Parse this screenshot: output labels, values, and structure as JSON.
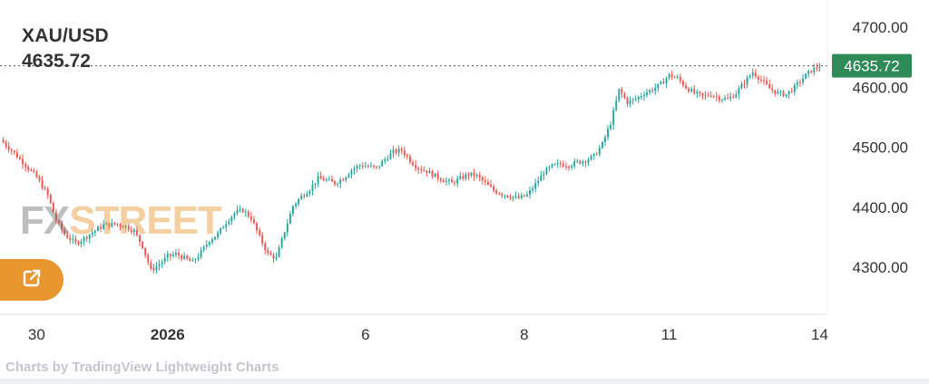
{
  "header": {
    "symbol": "XAU/USD",
    "last_value": "4635.72"
  },
  "watermark": {
    "fx": "FX",
    "street": "STREET"
  },
  "open_button_icon": "external-link-icon",
  "footer": {
    "attribution": "Charts by TradingView Lightweight Charts"
  },
  "colors": {
    "up": "#26a69a",
    "down": "#ef5350",
    "last_price_label": "#2e8b57",
    "accent": "#e8962e"
  },
  "chart_data": {
    "type": "candlestick",
    "y_ticks": [
      "4700.00",
      "4600.00",
      "4500.00",
      "4400.00",
      "4300.00"
    ],
    "x_ticks": [
      {
        "label": "30",
        "bold": false
      },
      {
        "label": "2026",
        "bold": true
      },
      {
        "label": "6",
        "bold": false
      },
      {
        "label": "8",
        "bold": false
      },
      {
        "label": "11",
        "bold": false
      },
      {
        "label": "14",
        "bold": false
      }
    ],
    "ylim": [
      4245,
      4730
    ],
    "last_price": 4635.72,
    "last_price_label": "4635.72",
    "grid": false,
    "path": [
      [
        0,
        4508
      ],
      [
        4,
        4490
      ],
      [
        8,
        4470
      ],
      [
        12,
        4450
      ],
      [
        16,
        4420
      ],
      [
        19,
        4378
      ],
      [
        22,
        4355
      ],
      [
        26,
        4340
      ],
      [
        29,
        4348
      ],
      [
        32,
        4358
      ],
      [
        36,
        4370
      ],
      [
        40,
        4372
      ],
      [
        44,
        4368
      ],
      [
        47,
        4360
      ],
      [
        50,
        4335
      ],
      [
        53,
        4295
      ],
      [
        56,
        4305
      ],
      [
        59,
        4318
      ],
      [
        62,
        4322
      ],
      [
        65,
        4315
      ],
      [
        68,
        4308
      ],
      [
        71,
        4325
      ],
      [
        74,
        4345
      ],
      [
        77,
        4355
      ],
      [
        80,
        4375
      ],
      [
        83,
        4390
      ],
      [
        86,
        4395
      ],
      [
        89,
        4382
      ],
      [
        92,
        4350
      ],
      [
        95,
        4322
      ],
      [
        98,
        4315
      ],
      [
        101,
        4360
      ],
      [
        104,
        4402
      ],
      [
        107,
        4418
      ],
      [
        110,
        4430
      ],
      [
        113,
        4448
      ],
      [
        116,
        4445
      ],
      [
        119,
        4440
      ],
      [
        122,
        4448
      ],
      [
        125,
        4462
      ],
      [
        128,
        4470
      ],
      [
        131,
        4468
      ],
      [
        134,
        4465
      ],
      [
        137,
        4480
      ],
      [
        140,
        4492
      ],
      [
        143,
        4495
      ],
      [
        146,
        4478
      ],
      [
        149,
        4465
      ],
      [
        152,
        4460
      ],
      [
        155,
        4452
      ],
      [
        158,
        4445
      ],
      [
        161,
        4440
      ],
      [
        164,
        4448
      ],
      [
        167,
        4455
      ],
      [
        170,
        4452
      ],
      [
        173,
        4440
      ],
      [
        176,
        4428
      ],
      [
        179,
        4422
      ],
      [
        182,
        4418
      ],
      [
        185,
        4415
      ],
      [
        188,
        4420
      ],
      [
        191,
        4438
      ],
      [
        194,
        4458
      ],
      [
        197,
        4468
      ],
      [
        200,
        4472
      ],
      [
        203,
        4470
      ],
      [
        206,
        4475
      ],
      [
        209,
        4478
      ],
      [
        212,
        4485
      ],
      [
        215,
        4505
      ],
      [
        218,
        4540
      ],
      [
        221,
        4595
      ],
      [
        224,
        4575
      ],
      [
        227,
        4580
      ],
      [
        230,
        4590
      ],
      [
        233,
        4596
      ],
      [
        236,
        4605
      ],
      [
        239,
        4620
      ],
      [
        242,
        4615
      ],
      [
        245,
        4600
      ],
      [
        248,
        4590
      ],
      [
        251,
        4585
      ],
      [
        254,
        4588
      ],
      [
        257,
        4582
      ],
      [
        260,
        4580
      ],
      [
        263,
        4590
      ],
      [
        266,
        4608
      ],
      [
        269,
        4625
      ],
      [
        272,
        4612
      ],
      [
        275,
        4598
      ],
      [
        278,
        4590
      ],
      [
        281,
        4588
      ],
      [
        284,
        4600
      ],
      [
        287,
        4615
      ],
      [
        290,
        4628
      ],
      [
        293,
        4636
      ]
    ],
    "x_label_index": [
      12,
      59,
      130,
      187,
      239,
      293
    ]
  }
}
